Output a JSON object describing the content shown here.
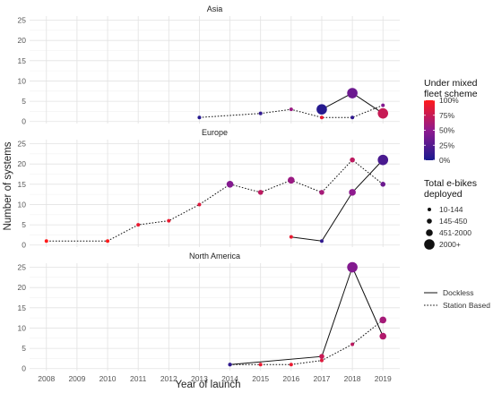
{
  "chart_data": {
    "type": "scatter",
    "xlabel": "Year of launch",
    "ylabel": "Number of systems",
    "x_ticks": [
      2008,
      2009,
      2010,
      2011,
      2012,
      2013,
      2014,
      2015,
      2016,
      2017,
      2018,
      2019
    ],
    "y_ticks": [
      0,
      5,
      10,
      15,
      20,
      25
    ],
    "xlim": [
      2007.45,
      2019.55
    ],
    "ylim": [
      -0.5,
      26
    ],
    "grid": true,
    "legend_placement": "right",
    "color_legend": {
      "title_lines": [
        "Under mixed",
        "fleet scheme"
      ],
      "labels": [
        "100%",
        "75%",
        "50%",
        "25%",
        "0%"
      ],
      "low_color": "#1a1a8f",
      "mid_color": "#8f1a8f",
      "high_color": "#ff1a1a"
    },
    "size_legend": {
      "title_lines": [
        "Total e-bikes",
        "deployed"
      ],
      "labels": [
        "10-144",
        "145-450",
        "451-2000",
        "2000+"
      ]
    },
    "line_legend": {
      "entries": [
        {
          "label": "Dockless",
          "dash": "solid"
        },
        {
          "label": "Station Based",
          "dash": "dotted"
        }
      ]
    },
    "panels": [
      {
        "title": "Asia",
        "series": [
          {
            "name": "Station Based",
            "dash": "dotted",
            "points": [
              {
                "x": 2013,
                "y": 1,
                "size": 1,
                "mixed": 0.05
              },
              {
                "x": 2015,
                "y": 2,
                "size": 1,
                "mixed": 0.1
              },
              {
                "x": 2016,
                "y": 3,
                "size": 1,
                "mixed": 0.55
              },
              {
                "x": 2017,
                "y": 1,
                "size": 1,
                "mixed": 0.9
              },
              {
                "x": 2018,
                "y": 1,
                "size": 1,
                "mixed": 0.1
              },
              {
                "x": 2019,
                "y": 4,
                "size": 1,
                "mixed": 0.45
              }
            ]
          },
          {
            "name": "Dockless",
            "dash": "solid",
            "points": [
              {
                "x": 2017,
                "y": 3,
                "size": 4,
                "mixed": 0.05
              },
              {
                "x": 2018,
                "y": 7,
                "size": 4,
                "mixed": 0.35
              },
              {
                "x": 2019,
                "y": 2,
                "size": 4,
                "mixed": 0.75
              }
            ]
          }
        ]
      },
      {
        "title": "Europe",
        "series": [
          {
            "name": "Station Based",
            "dash": "dotted",
            "points": [
              {
                "x": 2008,
                "y": 1,
                "size": 1,
                "mixed": 1.0
              },
              {
                "x": 2010,
                "y": 1,
                "size": 1,
                "mixed": 1.0
              },
              {
                "x": 2011,
                "y": 5,
                "size": 1,
                "mixed": 0.9
              },
              {
                "x": 2012,
                "y": 6,
                "size": 1,
                "mixed": 0.9
              },
              {
                "x": 2013,
                "y": 10,
                "size": 1,
                "mixed": 0.85
              },
              {
                "x": 2014,
                "y": 15,
                "size": 3,
                "mixed": 0.45
              },
              {
                "x": 2015,
                "y": 13,
                "size": 2,
                "mixed": 0.7
              },
              {
                "x": 2016,
                "y": 16,
                "size": 3,
                "mixed": 0.55
              },
              {
                "x": 2017,
                "y": 13,
                "size": 2,
                "mixed": 0.6
              },
              {
                "x": 2018,
                "y": 21,
                "size": 2,
                "mixed": 0.7
              },
              {
                "x": 2019,
                "y": 15,
                "size": 2,
                "mixed": 0.35
              }
            ]
          },
          {
            "name": "Dockless",
            "dash": "solid",
            "points": [
              {
                "x": 2016,
                "y": 2,
                "size": 1,
                "mixed": 0.9
              },
              {
                "x": 2017,
                "y": 1,
                "size": 1,
                "mixed": 0.1
              },
              {
                "x": 2018,
                "y": 13,
                "size": 3,
                "mixed": 0.5
              },
              {
                "x": 2019,
                "y": 21,
                "size": 4,
                "mixed": 0.2
              }
            ]
          }
        ]
      },
      {
        "title": "North America",
        "series": [
          {
            "name": "Station Based",
            "dash": "dotted",
            "points": [
              {
                "x": 2014,
                "y": 1,
                "size": 1,
                "mixed": 0.05
              },
              {
                "x": 2015,
                "y": 1,
                "size": 1,
                "mixed": 0.9
              },
              {
                "x": 2016,
                "y": 1,
                "size": 1,
                "mixed": 0.9
              },
              {
                "x": 2017,
                "y": 2,
                "size": 1,
                "mixed": 0.85
              },
              {
                "x": 2018,
                "y": 6,
                "size": 1,
                "mixed": 0.7
              },
              {
                "x": 2019,
                "y": 12,
                "size": 3,
                "mixed": 0.6
              }
            ]
          },
          {
            "name": "Dockless",
            "dash": "solid",
            "points": [
              {
                "x": 2014,
                "y": 1,
                "size": 1,
                "mixed": 0.1
              },
              {
                "x": 2017,
                "y": 3,
                "size": 2,
                "mixed": 0.75
              },
              {
                "x": 2018,
                "y": 25,
                "size": 4,
                "mixed": 0.45
              },
              {
                "x": 2019,
                "y": 8,
                "size": 3,
                "mixed": 0.65
              }
            ]
          }
        ]
      }
    ]
  }
}
